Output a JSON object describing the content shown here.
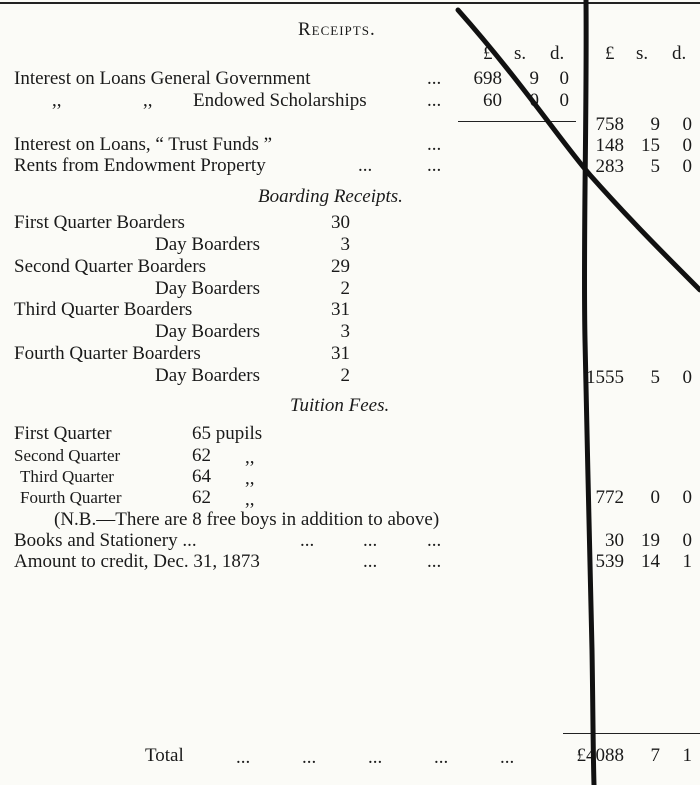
{
  "title": "Receipts.",
  "columns": {
    "group1": {
      "pounds": "£",
      "shillings": "s.",
      "pence": "d."
    },
    "group2": {
      "pounds": "£",
      "shillings": "s.",
      "pence": "d."
    }
  },
  "interest_general": {
    "label": "Interest on Loans General Government",
    "leader": "...",
    "pounds": "698",
    "shillings": "9",
    "pence": "0"
  },
  "interest_endowed": {
    "ditto1": ",,",
    "ditto2": ",,",
    "label": "Endowed Scholarships",
    "leader": "...",
    "pounds": "60",
    "shillings": "0",
    "pence": "0"
  },
  "interest_total": {
    "pounds": "758",
    "shillings": "9",
    "pence": "0"
  },
  "trust_funds": {
    "label": "Interest on Loans, “ Trust Funds ”",
    "leader": "...",
    "pounds": "148",
    "shillings": "15",
    "pence": "0"
  },
  "rents": {
    "label": "Rents from Endowment Property",
    "leader1": "...",
    "leader2": "...",
    "pounds": "283",
    "shillings": "5",
    "pence": "0"
  },
  "boarding": {
    "heading": "Boarding Receipts.",
    "rows": [
      {
        "label": "First Quarter Boarders",
        "value": "30"
      },
      {
        "label": "Day Boarders",
        "value": "3"
      },
      {
        "label": "Second Quarter Boarders",
        "value": "29"
      },
      {
        "label": "Day Boarders",
        "value": "2"
      },
      {
        "label": "Third Quarter Boarders",
        "value": "31"
      },
      {
        "label": "Day Boarders",
        "value": "3"
      },
      {
        "label": "Fourth Quarter Boarders",
        "value": "31"
      },
      {
        "label": "Day Boarders",
        "value": "2"
      }
    ],
    "total": {
      "pounds": "1555",
      "shillings": "5",
      "pence": "0"
    }
  },
  "tuition": {
    "heading": "Tuition Fees.",
    "rows": [
      {
        "label": "First Quarter",
        "value": "65 pupils"
      },
      {
        "label": "Second Quarter",
        "value": "62",
        "ditto": ",,"
      },
      {
        "label": "Third Quarter",
        "value": "64",
        "ditto": ",,"
      },
      {
        "label": "Fourth Quarter",
        "value": "62",
        "ditto": ",,"
      }
    ],
    "total": {
      "pounds": "772",
      "shillings": "0",
      "pence": "0"
    },
    "note": "(N.B.—There are 8 free boys in addition to above)"
  },
  "books": {
    "label": "Books and Stationery ...",
    "leaders": [
      "...",
      "...",
      "..."
    ],
    "pounds": "30",
    "shillings": "19",
    "pence": "0"
  },
  "credit": {
    "label": "Amount to credit, Dec. 31, 1873",
    "leaders": [
      "...",
      "..."
    ],
    "pounds": "539",
    "shillings": "14",
    "pence": "1"
  },
  "total": {
    "label": "Total",
    "leaders": [
      "...",
      "...",
      "...",
      "...",
      "..."
    ],
    "pounds": "£4088",
    "shillings": "7",
    "pence": "1"
  }
}
